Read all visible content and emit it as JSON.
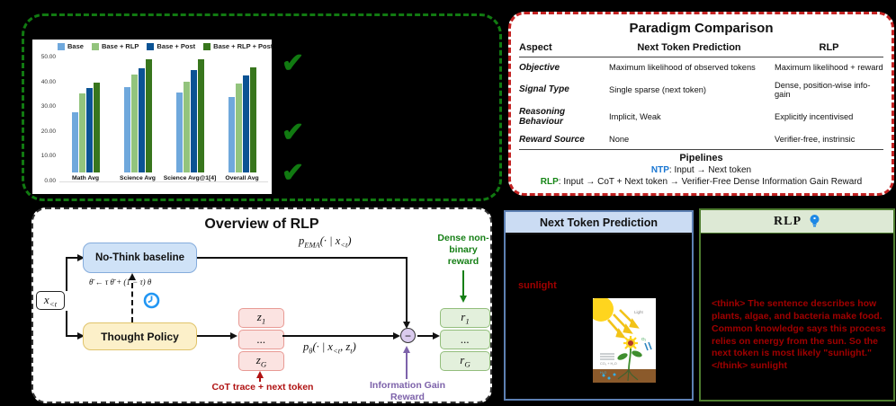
{
  "colors": {
    "panel_green_border": "#117a11",
    "panel_red_border": "#c32222",
    "ntp_blue": "#1976d2",
    "rlp_green": "#158515",
    "dark_red_text": "#a00000",
    "purple_accent": "#7d62aa"
  },
  "benchmark_panel": {
    "checkmarks": [
      "✔",
      "✔",
      "✔"
    ],
    "chart_data": {
      "type": "bar",
      "categories": [
        "Math Avg",
        "Science Avg",
        "Science Avg@1[4]",
        "Overall Avg"
      ],
      "series": [
        {
          "name": "Base",
          "color": "#6FA8DC",
          "values": [
            24.2,
            34.3,
            32.1,
            30.4
          ]
        },
        {
          "name": "Base + RLP",
          "color": "#93C47D",
          "values": [
            32.0,
            39.5,
            36.5,
            36.0
          ]
        },
        {
          "name": "Base + Post",
          "color": "#0B5394",
          "values": [
            34.2,
            42.2,
            41.2,
            39.2
          ]
        },
        {
          "name": "Base + RLP + Post",
          "color": "#38761D",
          "values": [
            36.1,
            45.8,
            45.8,
            42.4
          ]
        }
      ],
      "ylim": [
        0,
        50
      ],
      "ytick_labels": [
        "0.00",
        "10.00",
        "20.00",
        "30.00",
        "40.00",
        "50.00"
      ],
      "legend_position": "top",
      "grid": false,
      "title": "",
      "xlabel": "",
      "ylabel": ""
    }
  },
  "paradigm_table": {
    "title": "Paradigm Comparison",
    "columns": [
      "Aspect",
      "Next Token Prediction",
      "RLP"
    ],
    "rows": [
      {
        "aspect": "Objective",
        "ntp": "Maximum likelihood of observed tokens",
        "rlp": "Maximum likelihood + reward"
      },
      {
        "aspect": "Signal Type",
        "ntp": "Single sparse (next token)",
        "rlp": "Dense, position-wise info-gain"
      },
      {
        "aspect": "Reasoning Behaviour",
        "ntp": "Implicit, Weak",
        "rlp": "Explicitly incentivised"
      },
      {
        "aspect": "Reward Source",
        "ntp": "None",
        "rlp": "Verifier-free, instrinsic"
      }
    ],
    "pipelines": {
      "title": "Pipelines",
      "ntp_tag": "NTP",
      "ntp_rest": ": Input → Next token",
      "rlp_tag": "RLP",
      "rlp_rest": ": Input → CoT + Next token → Verifier-Free Dense Information Gain Reward"
    }
  },
  "overview": {
    "title": "Overview of RLP",
    "nothink_label": "No-Think baseline",
    "thought_label": "Thought Policy",
    "xbox": {
      "base": "x",
      "sub": "<t"
    },
    "ema_formula": "θ̄ ← τ θ̄ + (1 − τ) θ",
    "pema": {
      "p": "p",
      "sub": "EMA",
      "mid": "(· | x",
      "sub2": "<t",
      "end": ")"
    },
    "ptheta": {
      "p": "p",
      "sub": "θ",
      "mid": "(· | x",
      "sub2": "<t",
      "mid2": ", z",
      "sub3": "t",
      "end": ")"
    },
    "z_stack": [
      {
        "t": "z",
        "s": "1"
      },
      {
        "t": "...",
        "s": ""
      },
      {
        "t": "z",
        "s": "G"
      }
    ],
    "r_stack": [
      {
        "t": "r",
        "s": "1"
      },
      {
        "t": "...",
        "s": ""
      },
      {
        "t": "r",
        "s": "G"
      }
    ],
    "minus_sign": "−",
    "cot_label": "CoT trace + next token",
    "dense_label": "Dense non-binary reward",
    "info_gain_label": "Information Gain Reward"
  },
  "ntp_panel": {
    "title": "Next Token Prediction",
    "output_token": "sunlight"
  },
  "rlp_panel": {
    "title": "RLP",
    "body": "<think> The sentence describes how plants, algae, and bacteria make food. Common knowledge says this process relies on energy from the sun. So the next token is most likely \"sunlight.\"</think> sunlight"
  }
}
